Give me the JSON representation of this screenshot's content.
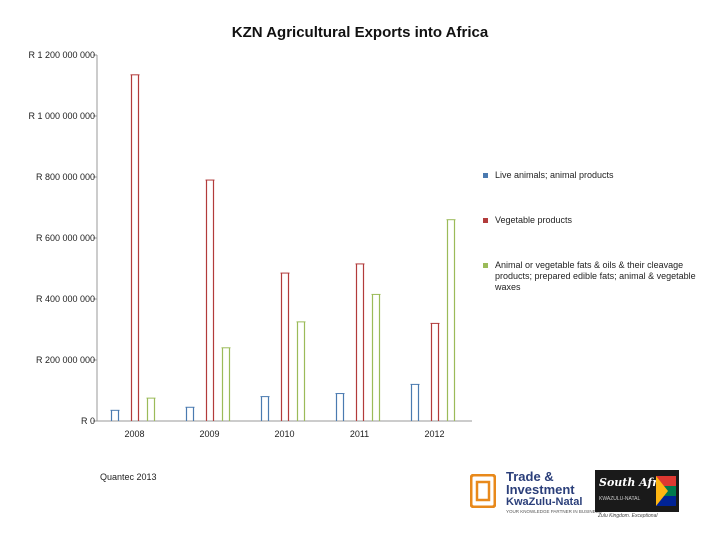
{
  "chart_data": {
    "type": "bar",
    "title": "KZN Agricultural Exports into Africa",
    "categories": [
      "2008",
      "2009",
      "2010",
      "2011",
      "2012"
    ],
    "ylim": [
      0,
      1200000000
    ],
    "yticks": [
      0,
      200000000,
      400000000,
      600000000,
      800000000,
      1000000000,
      1200000000
    ],
    "ytick_labels": [
      "R 0",
      "R 200 000 000",
      "R 400 000 000",
      "R 600 000 000",
      "R 800 000 000",
      "R 1 000 000 000",
      "R 1 200 000 000"
    ],
    "grid": false,
    "legend_position": "right",
    "series": [
      {
        "name": "Live animals; animal products",
        "color": "#4a7ab0",
        "values": [
          35000000,
          45000000,
          80000000,
          90000000,
          120000000
        ]
      },
      {
        "name": "Vegetable products",
        "color": "#b23b3b",
        "values": [
          1135000000,
          790000000,
          485000000,
          515000000,
          320000000
        ]
      },
      {
        "name": "Animal or vegetable fats & oils & their cleavage products; prepared edible fats; animal & vegetable waxes",
        "color": "#9bbb59",
        "values": [
          75000000,
          240000000,
          325000000,
          415000000,
          660000000
        ]
      }
    ]
  },
  "source": "Quantec 2013",
  "logos": {
    "tik_name": "Trade & Investment KwaZulu-Natal",
    "tik_line1": "Trade &",
    "tik_line2": "Investment",
    "tik_line3": "KwaZulu-Natal",
    "tik_tagline": "YOUR KNOWLEDGE PARTNER IN BUSINESS",
    "sa_name": "South Africa",
    "sa_sub": "KWAZULU-NATAL",
    "sa_tagline": "Zulu Kingdom. Exceptional"
  }
}
